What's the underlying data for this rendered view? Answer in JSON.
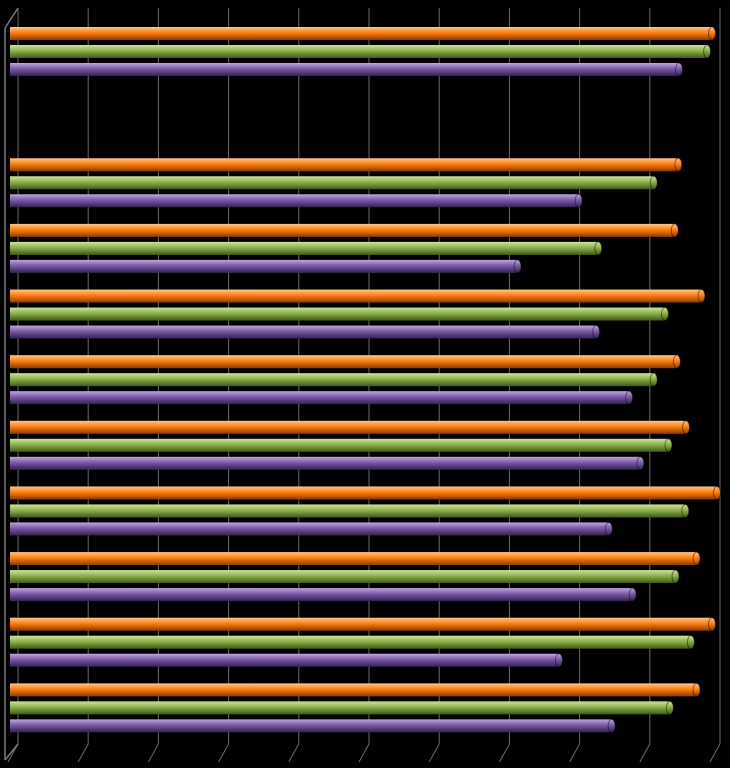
{
  "chart_data": {
    "type": "bar",
    "orientation": "horizontal",
    "style": "3d-cylinder",
    "title": "",
    "xlabel": "",
    "ylabel": "",
    "grid": true,
    "legend": "none",
    "xlim": [
      0,
      10
    ],
    "categories": [
      "",
      "",
      "",
      "",
      "",
      "",
      "",
      "",
      "",
      "",
      ""
    ],
    "series": [
      {
        "color": "#ff7f0e",
        "values": [
          10.0,
          null,
          9.52,
          9.47,
          9.85,
          9.5,
          9.63,
          10.07,
          9.78,
          10.0,
          9.78
        ]
      },
      {
        "color": "#8db04c",
        "values": [
          9.93,
          null,
          9.17,
          8.38,
          9.33,
          9.17,
          9.38,
          9.62,
          9.48,
          9.7,
          9.4
        ]
      },
      {
        "color": "#7a5aa6",
        "values": [
          9.53,
          null,
          8.1,
          7.23,
          8.35,
          8.82,
          8.98,
          8.53,
          8.87,
          7.82,
          8.57
        ]
      }
    ]
  }
}
